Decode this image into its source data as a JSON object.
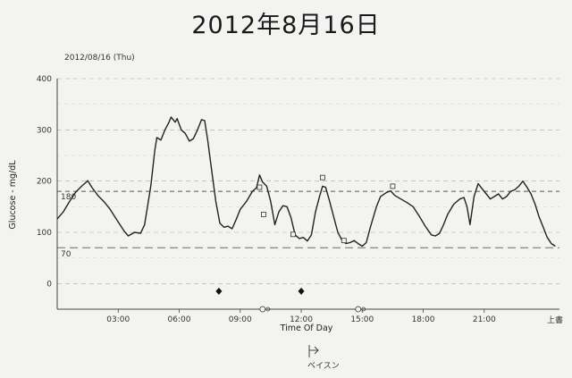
{
  "page": {
    "title": "2012年8月16日",
    "date_label": "2012/08/16 (Thu)",
    "footer_note": "ベイスン",
    "end_label": "上書"
  },
  "chart_data": {
    "type": "line",
    "xlabel": "Time Of Day",
    "ylabel": "Glucose - mg/dL",
    "xlim": [
      0,
      24.7
    ],
    "ylim": [
      -50,
      400
    ],
    "x_ticks": [
      {
        "v": 3,
        "label": "03:00"
      },
      {
        "v": 6,
        "label": "06:00"
      },
      {
        "v": 9,
        "label": "09:00"
      },
      {
        "v": 12,
        "label": "12:00"
      },
      {
        "v": 15,
        "label": "15:00"
      },
      {
        "v": 18,
        "label": "18:00"
      },
      {
        "v": 21,
        "label": "21:00"
      }
    ],
    "y_ticks": [
      {
        "v": 0,
        "label": "0"
      },
      {
        "v": 100,
        "label": "100"
      },
      {
        "v": 200,
        "label": "200"
      },
      {
        "v": 300,
        "label": "300"
      },
      {
        "v": 400,
        "label": "400"
      }
    ],
    "thresholds": [
      {
        "v": 180,
        "label": "180",
        "style": "dashed"
      },
      {
        "v": 70,
        "label": "70",
        "style": "long-dash"
      }
    ],
    "series": [
      {
        "points": [
          [
            0,
            126
          ],
          [
            0.3,
            140
          ],
          [
            0.6,
            160
          ],
          [
            0.9,
            178
          ],
          [
            1.2,
            190
          ],
          [
            1.4,
            197
          ],
          [
            1.5,
            201
          ],
          [
            1.7,
            188
          ],
          [
            2.0,
            172
          ],
          [
            2.3,
            160
          ],
          [
            2.6,
            145
          ],
          [
            3.0,
            120
          ],
          [
            3.3,
            102
          ],
          [
            3.5,
            93
          ],
          [
            3.8,
            100
          ],
          [
            4.1,
            98
          ],
          [
            4.3,
            115
          ],
          [
            4.6,
            190
          ],
          [
            4.8,
            260
          ],
          [
            4.9,
            285
          ],
          [
            5.1,
            280
          ],
          [
            5.3,
            300
          ],
          [
            5.5,
            315
          ],
          [
            5.6,
            325
          ],
          [
            5.8,
            315
          ],
          [
            5.9,
            322
          ],
          [
            6.1,
            300
          ],
          [
            6.3,
            293
          ],
          [
            6.5,
            278
          ],
          [
            6.7,
            283
          ],
          [
            6.9,
            300
          ],
          [
            7.1,
            320
          ],
          [
            7.25,
            318
          ],
          [
            7.4,
            280
          ],
          [
            7.6,
            220
          ],
          [
            7.8,
            160
          ],
          [
            8.0,
            118
          ],
          [
            8.2,
            110
          ],
          [
            8.4,
            112
          ],
          [
            8.6,
            107
          ],
          [
            8.8,
            125
          ],
          [
            9.0,
            145
          ],
          [
            9.3,
            160
          ],
          [
            9.6,
            180
          ],
          [
            9.8,
            187
          ],
          [
            9.95,
            212
          ],
          [
            10.1,
            198
          ],
          [
            10.3,
            190
          ],
          [
            10.5,
            160
          ],
          [
            10.7,
            115
          ],
          [
            10.9,
            140
          ],
          [
            11.1,
            152
          ],
          [
            11.3,
            150
          ],
          [
            11.5,
            128
          ],
          [
            11.7,
            95
          ],
          [
            11.9,
            88
          ],
          [
            12.1,
            90
          ],
          [
            12.3,
            83
          ],
          [
            12.5,
            95
          ],
          [
            12.7,
            140
          ],
          [
            12.9,
            170
          ],
          [
            13.05,
            190
          ],
          [
            13.2,
            188
          ],
          [
            13.4,
            160
          ],
          [
            13.6,
            130
          ],
          [
            13.8,
            100
          ],
          [
            14.0,
            85
          ],
          [
            14.2,
            78
          ],
          [
            14.4,
            80
          ],
          [
            14.6,
            84
          ],
          [
            14.8,
            78
          ],
          [
            15.0,
            73
          ],
          [
            15.2,
            80
          ],
          [
            15.4,
            110
          ],
          [
            15.7,
            150
          ],
          [
            15.9,
            170
          ],
          [
            16.2,
            178
          ],
          [
            16.4,
            181
          ],
          [
            16.6,
            172
          ],
          [
            16.9,
            165
          ],
          [
            17.2,
            158
          ],
          [
            17.5,
            150
          ],
          [
            17.8,
            132
          ],
          [
            18.1,
            112
          ],
          [
            18.4,
            95
          ],
          [
            18.6,
            93
          ],
          [
            18.8,
            98
          ],
          [
            19.0,
            115
          ],
          [
            19.2,
            135
          ],
          [
            19.5,
            155
          ],
          [
            19.8,
            165
          ],
          [
            20.0,
            168
          ],
          [
            20.15,
            150
          ],
          [
            20.3,
            115
          ],
          [
            20.5,
            170
          ],
          [
            20.7,
            195
          ],
          [
            20.9,
            185
          ],
          [
            21.1,
            175
          ],
          [
            21.3,
            165
          ],
          [
            21.5,
            170
          ],
          [
            21.7,
            175
          ],
          [
            21.9,
            165
          ],
          [
            22.1,
            170
          ],
          [
            22.3,
            180
          ],
          [
            22.5,
            183
          ],
          [
            22.7,
            190
          ],
          [
            22.9,
            200
          ],
          [
            23.1,
            188
          ],
          [
            23.3,
            175
          ],
          [
            23.5,
            155
          ],
          [
            23.7,
            130
          ],
          [
            23.9,
            110
          ],
          [
            24.1,
            90
          ],
          [
            24.3,
            78
          ],
          [
            24.5,
            73
          ]
        ]
      }
    ],
    "event_markers": [
      {
        "x": 7.95,
        "type": "diamond"
      },
      {
        "x": 12.0,
        "type": "diamond"
      }
    ],
    "meal_markers": [
      {
        "x": 9.95,
        "y": 188
      },
      {
        "x": 10.15,
        "y": 135
      },
      {
        "x": 11.6,
        "y": 96
      },
      {
        "x": 13.05,
        "y": 207
      },
      {
        "x": 14.1,
        "y": 84
      },
      {
        "x": 16.5,
        "y": 190
      }
    ],
    "axis_events": [
      {
        "x": 10.1
      },
      {
        "x": 14.8
      }
    ]
  }
}
